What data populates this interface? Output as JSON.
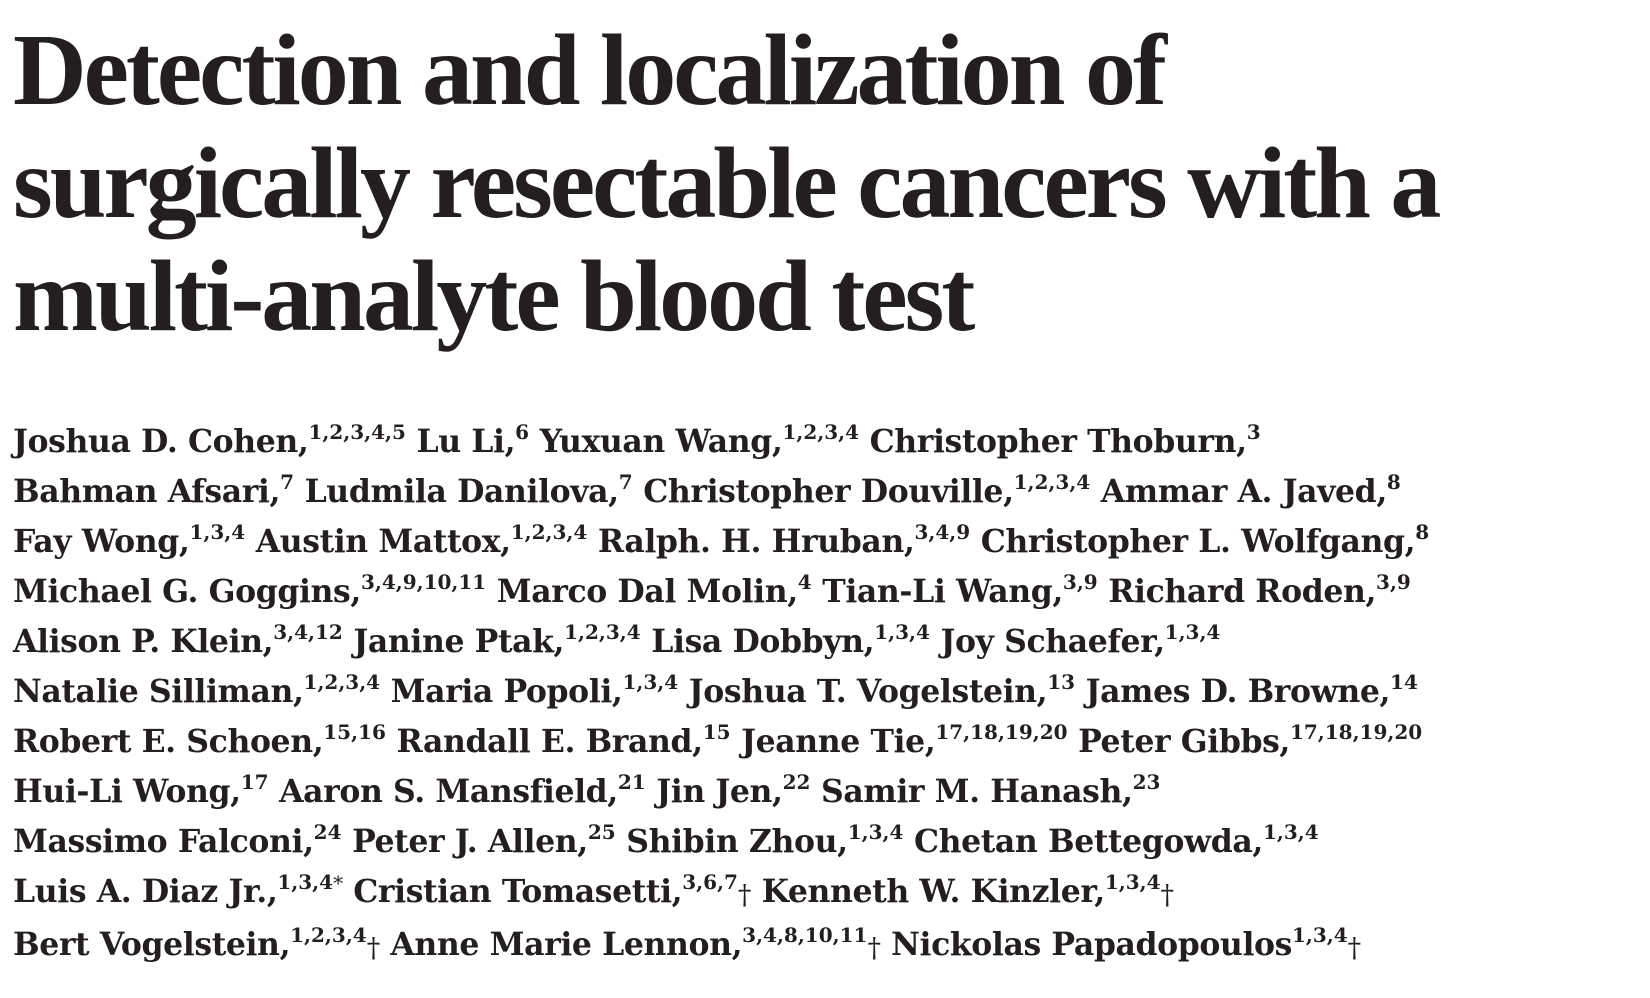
{
  "title_lines": [
    "Detection and localization of",
    "surgically resectable cancers with a",
    "multi-analyte blood test"
  ],
  "author_lines": [
    [
      {
        "name": "Joshua D. Cohen,",
        "aff": "1,2,3,4,5",
        "mark": ""
      },
      {
        "name": "Lu Li,",
        "aff": "6",
        "mark": ""
      },
      {
        "name": "Yuxuan Wang,",
        "aff": "1,2,3,4",
        "mark": ""
      },
      {
        "name": "Christopher Thoburn,",
        "aff": "3",
        "mark": ""
      }
    ],
    [
      {
        "name": "Bahman Afsari,",
        "aff": "7",
        "mark": ""
      },
      {
        "name": "Ludmila Danilova,",
        "aff": "7",
        "mark": ""
      },
      {
        "name": "Christopher Douville,",
        "aff": "1,2,3,4",
        "mark": ""
      },
      {
        "name": "Ammar A. Javed,",
        "aff": "8",
        "mark": ""
      }
    ],
    [
      {
        "name": "Fay Wong,",
        "aff": "1,3,4",
        "mark": ""
      },
      {
        "name": "Austin Mattox,",
        "aff": "1,2,3,4",
        "mark": ""
      },
      {
        "name": "Ralph. H. Hruban,",
        "aff": "3,4,9",
        "mark": ""
      },
      {
        "name": "Christopher L. Wolfgang,",
        "aff": "8",
        "mark": ""
      }
    ],
    [
      {
        "name": "Michael G. Goggins,",
        "aff": "3,4,9,10,11",
        "mark": ""
      },
      {
        "name": "Marco Dal Molin,",
        "aff": "4",
        "mark": ""
      },
      {
        "name": "Tian-Li Wang,",
        "aff": "3,9",
        "mark": ""
      },
      {
        "name": "Richard Roden,",
        "aff": "3,9",
        "mark": ""
      }
    ],
    [
      {
        "name": "Alison P. Klein,",
        "aff": "3,4,12",
        "mark": ""
      },
      {
        "name": "Janine Ptak,",
        "aff": "1,2,3,4",
        "mark": ""
      },
      {
        "name": "Lisa Dobbyn,",
        "aff": "1,3,4",
        "mark": ""
      },
      {
        "name": "Joy Schaefer,",
        "aff": "1,3,4",
        "mark": ""
      }
    ],
    [
      {
        "name": "Natalie Silliman,",
        "aff": "1,2,3,4",
        "mark": ""
      },
      {
        "name": "Maria Popoli,",
        "aff": "1,3,4",
        "mark": ""
      },
      {
        "name": "Joshua T. Vogelstein,",
        "aff": "13",
        "mark": ""
      },
      {
        "name": "James D. Browne,",
        "aff": "14",
        "mark": ""
      }
    ],
    [
      {
        "name": "Robert E. Schoen,",
        "aff": "15,16",
        "mark": ""
      },
      {
        "name": "Randall E. Brand,",
        "aff": "15",
        "mark": ""
      },
      {
        "name": "Jeanne Tie,",
        "aff": "17,18,19,20",
        "mark": ""
      },
      {
        "name": "Peter Gibbs,",
        "aff": "17,18,19,20",
        "mark": ""
      }
    ],
    [
      {
        "name": "Hui-Li Wong,",
        "aff": "17",
        "mark": ""
      },
      {
        "name": "Aaron S. Mansfield,",
        "aff": "21",
        "mark": ""
      },
      {
        "name": "Jin Jen,",
        "aff": "22",
        "mark": ""
      },
      {
        "name": "Samir M. Hanash,",
        "aff": "23",
        "mark": ""
      }
    ],
    [
      {
        "name": "Massimo Falconi,",
        "aff": "24",
        "mark": ""
      },
      {
        "name": "Peter J. Allen,",
        "aff": "25",
        "mark": ""
      },
      {
        "name": "Shibin Zhou,",
        "aff": "1,3,4",
        "mark": ""
      },
      {
        "name": "Chetan Bettegowda,",
        "aff": "1,3,4",
        "mark": ""
      }
    ],
    [
      {
        "name": "Luis A. Diaz Jr.,",
        "aff": "1,3,4",
        "mark": "*"
      },
      {
        "name": "Cristian Tomasetti,",
        "aff": "3,6,7",
        "mark": "†"
      },
      {
        "name": "Kenneth W. Kinzler,",
        "aff": "1,3,4",
        "mark": "†"
      }
    ],
    [
      {
        "name": "Bert Vogelstein,",
        "aff": "1,2,3,4",
        "mark": "†"
      },
      {
        "name": "Anne Marie Lennon,",
        "aff": "3,4,8,10,11",
        "mark": "†"
      },
      {
        "name": "Nickolas Papadopoulos",
        "aff": "1,3,4",
        "mark": "†"
      }
    ]
  ]
}
